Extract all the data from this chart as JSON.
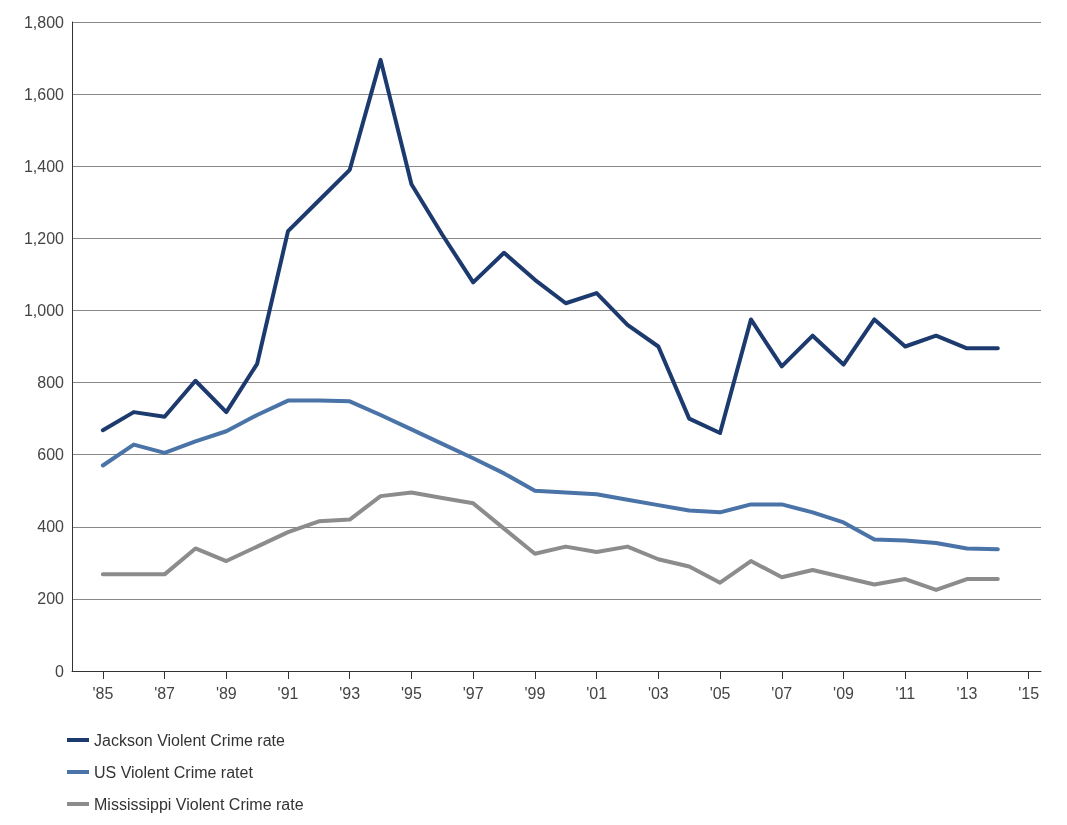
{
  "chart_data": {
    "type": "line",
    "x": [
      1985,
      1986,
      1987,
      1988,
      1989,
      1990,
      1991,
      1992,
      1993,
      1994,
      1995,
      1996,
      1997,
      1998,
      1999,
      2000,
      2001,
      2002,
      2003,
      2004,
      2005,
      2006,
      2007,
      2008,
      2009,
      2010,
      2011,
      2012,
      2013,
      2014
    ],
    "series": [
      {
        "name": "Jackson Violent Crime rate",
        "color": "#1c3a6e",
        "values": [
          668,
          718,
          705,
          805,
          718,
          852,
          1220,
          1305,
          1390,
          1695,
          1350,
          1210,
          1078,
          1160,
          1085,
          1020,
          1048,
          960,
          900,
          700,
          660,
          975,
          845,
          930,
          850,
          975,
          900,
          930,
          895,
          895
        ]
      },
      {
        "name": "US Violent Crime ratet",
        "color": "#4a73a8",
        "values": [
          570,
          628,
          605,
          637,
          665,
          710,
          750,
          750,
          748,
          710,
          670,
          630,
          590,
          548,
          500,
          495,
          490,
          475,
          460,
          445,
          440,
          462,
          462,
          440,
          412,
          365,
          362,
          355,
          340,
          338
        ]
      },
      {
        "name": "Mississippi Violent Crime rate",
        "color": "#8c8c8c",
        "values": [
          268,
          268,
          268,
          340,
          305,
          345,
          385,
          415,
          420,
          485,
          495,
          480,
          465,
          395,
          325,
          345,
          330,
          345,
          310,
          290,
          245,
          305,
          260,
          280,
          260,
          240,
          255,
          225,
          255,
          255
        ]
      }
    ],
    "xlim": [
      1984,
      2015.4
    ],
    "xticks": [
      {
        "value": 1985,
        "label": "'85"
      },
      {
        "value": 1987,
        "label": "'87"
      },
      {
        "value": 1989,
        "label": "'89"
      },
      {
        "value": 1991,
        "label": "'91"
      },
      {
        "value": 1993,
        "label": "'93"
      },
      {
        "value": 1995,
        "label": "'95"
      },
      {
        "value": 1997,
        "label": "'97"
      },
      {
        "value": 1999,
        "label": "'99"
      },
      {
        "value": 2001,
        "label": "'01"
      },
      {
        "value": 2003,
        "label": "'03"
      },
      {
        "value": 2005,
        "label": "'05"
      },
      {
        "value": 2007,
        "label": "'07"
      },
      {
        "value": 2009,
        "label": "'09"
      },
      {
        "value": 2011,
        "label": "'11"
      },
      {
        "value": 2013,
        "label": "'13"
      },
      {
        "value": 2015,
        "label": "'15"
      }
    ],
    "ylim": [
      0,
      1800
    ],
    "yticks": [
      0,
      200,
      400,
      600,
      800,
      {
        "value": 1000,
        "label": "1,000"
      },
      {
        "value": 1200,
        "label": "1,200"
      },
      {
        "value": 1400,
        "label": "1,400"
      },
      {
        "value": 1600,
        "label": "1,600"
      },
      {
        "value": 1800,
        "label": "1,800"
      }
    ],
    "grid": "y",
    "legend": "bottom left",
    "marker": "none",
    "line_style": "solid"
  }
}
